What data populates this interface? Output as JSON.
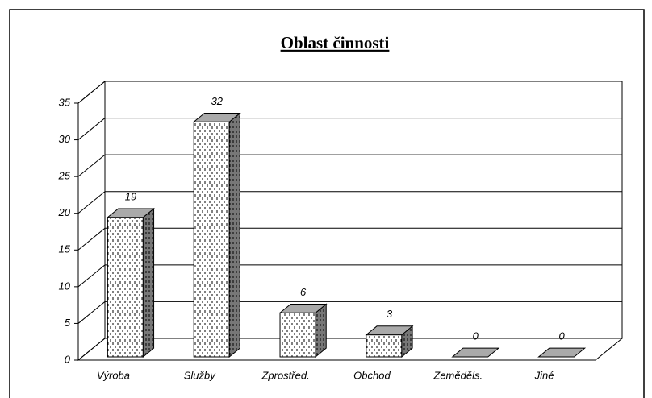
{
  "chart_data": {
    "type": "bar3d",
    "title": "Oblast činnosti",
    "categories": [
      "Výroba",
      "Služby",
      "Zprostřed.",
      "Obchod",
      "Zeměděls.",
      "Jiné"
    ],
    "values": [
      19,
      32,
      6,
      3,
      0,
      0
    ],
    "color": "#ffffff",
    "ylim": [
      0,
      35
    ],
    "yticks": [
      0,
      5,
      10,
      15,
      20,
      25,
      30,
      35
    ],
    "grid": true
  }
}
